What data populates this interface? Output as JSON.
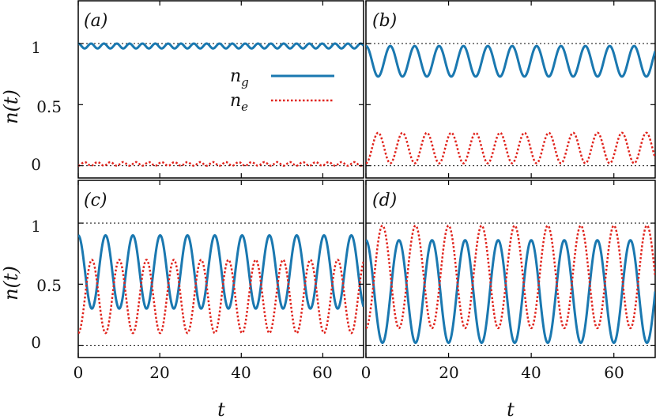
{
  "chart_data": [
    {
      "type": "line",
      "panel": "(a)",
      "xlim": [
        0,
        70
      ],
      "ylim": [
        -0.1,
        1.35
      ],
      "ref_lines": [
        0,
        1
      ],
      "series": [
        {
          "name": "n_g",
          "color": "#1a78b0",
          "style": "solid",
          "mean": 0.98,
          "amp": 0.02,
          "period": 3.15,
          "phase": 0
        },
        {
          "name": "n_e",
          "color": "#e0231c",
          "style": "dotted",
          "mean": 0.015,
          "amp": 0.015,
          "period": 3.15,
          "phase": 3.1416
        }
      ]
    },
    {
      "type": "line",
      "panel": "(b)",
      "xlim": [
        0,
        70
      ],
      "ylim": [
        -0.1,
        1.35
      ],
      "ref_lines": [
        0,
        1
      ],
      "series": [
        {
          "name": "n_g",
          "color": "#1a78b0",
          "style": "solid",
          "mean": 0.855,
          "amp": 0.125,
          "period": 5.9,
          "phase": 0
        },
        {
          "name": "n_e",
          "color": "#e0231c",
          "style": "dotted",
          "mean": 0.145,
          "amp": 0.125,
          "period": 5.9,
          "phase": 3.1416
        }
      ]
    },
    {
      "type": "line",
      "panel": "(c)",
      "xlim": [
        0,
        70
      ],
      "ylim": [
        -0.1,
        1.35
      ],
      "ref_lines": [
        0,
        1
      ],
      "series": [
        {
          "name": "n_g",
          "color": "#1a78b0",
          "style": "solid",
          "mean": 0.6,
          "amp": 0.3,
          "period": 6.7,
          "phase": 0
        },
        {
          "name": "n_e",
          "color": "#e0231c",
          "style": "dotted",
          "mean": 0.4,
          "amp": 0.3,
          "period": 6.7,
          "phase": 3.1416
        }
      ]
    },
    {
      "type": "line",
      "panel": "(d)",
      "xlim": [
        0,
        70
      ],
      "ylim": [
        -0.1,
        1.35
      ],
      "ref_lines": [
        0,
        1
      ],
      "series": [
        {
          "name": "n_g",
          "color": "#1a78b0",
          "style": "solid",
          "mean": 0.44,
          "amp": 0.42,
          "period": 8.0,
          "phase": 0
        },
        {
          "name": "n_e",
          "color": "#e0231c",
          "style": "dotted",
          "mean": 0.56,
          "amp": 0.42,
          "period": 8.0,
          "phase": 3.1416
        }
      ]
    }
  ],
  "panel_labels": [
    "(a)",
    "(b)",
    "(c)",
    "(d)"
  ],
  "y_ticks": [
    "0",
    "0.5",
    "1"
  ],
  "x_ticks": [
    "0",
    "20",
    "40",
    "60"
  ],
  "y_label": "n(t)",
  "x_label": "t",
  "legend": {
    "ng": {
      "symbol": "n",
      "sub": "g"
    },
    "ne": {
      "symbol": "n",
      "sub": "e"
    }
  },
  "colors": {
    "ng": "#1a78b0",
    "ne": "#e0231c",
    "ref": "#222222"
  }
}
